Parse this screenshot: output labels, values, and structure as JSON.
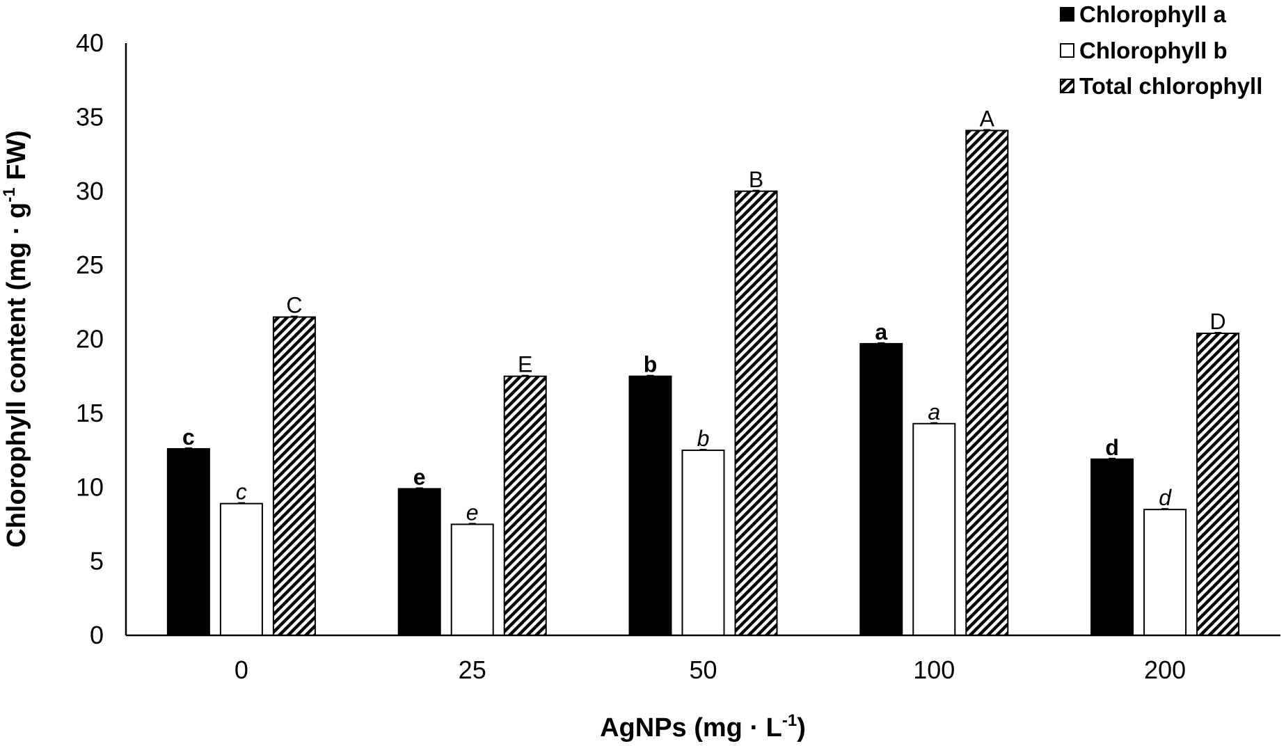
{
  "chart_data": {
    "type": "bar",
    "title": "",
    "xlabel": "AgNPs (mg · L",
    "xlabel_sup": "-1",
    "xlabel_end": ")",
    "ylabel": "Chlorophyll content (mg · g",
    "ylabel_sup": "-1",
    "ylabel_end": " FW)",
    "ylim": [
      0,
      40
    ],
    "yticks": [
      0,
      5,
      10,
      15,
      20,
      25,
      30,
      35,
      40
    ],
    "categories": [
      "0",
      "25",
      "50",
      "100",
      "200"
    ],
    "legend_position": "top-right",
    "series": [
      {
        "name": "Chlorophyll a",
        "style": "solid",
        "color": "#000000",
        "values": [
          12.6,
          9.9,
          17.5,
          19.7,
          11.9
        ],
        "labels": [
          "c",
          "e",
          "b",
          "a",
          "d"
        ],
        "label_style": "bold"
      },
      {
        "name": "Chlorophyll b",
        "style": "hollow",
        "color": "#ffffff",
        "values": [
          8.9,
          7.5,
          12.5,
          14.3,
          8.5
        ],
        "labels": [
          "c",
          "e",
          "b",
          "a",
          "d"
        ],
        "label_style": "italic"
      },
      {
        "name": "Total chlorophyll",
        "style": "hatched",
        "color": "#000000",
        "values": [
          21.5,
          17.5,
          30.0,
          34.1,
          20.4
        ],
        "labels": [
          "C",
          "E",
          "B",
          "A",
          "D"
        ],
        "label_style": "normal"
      }
    ]
  }
}
